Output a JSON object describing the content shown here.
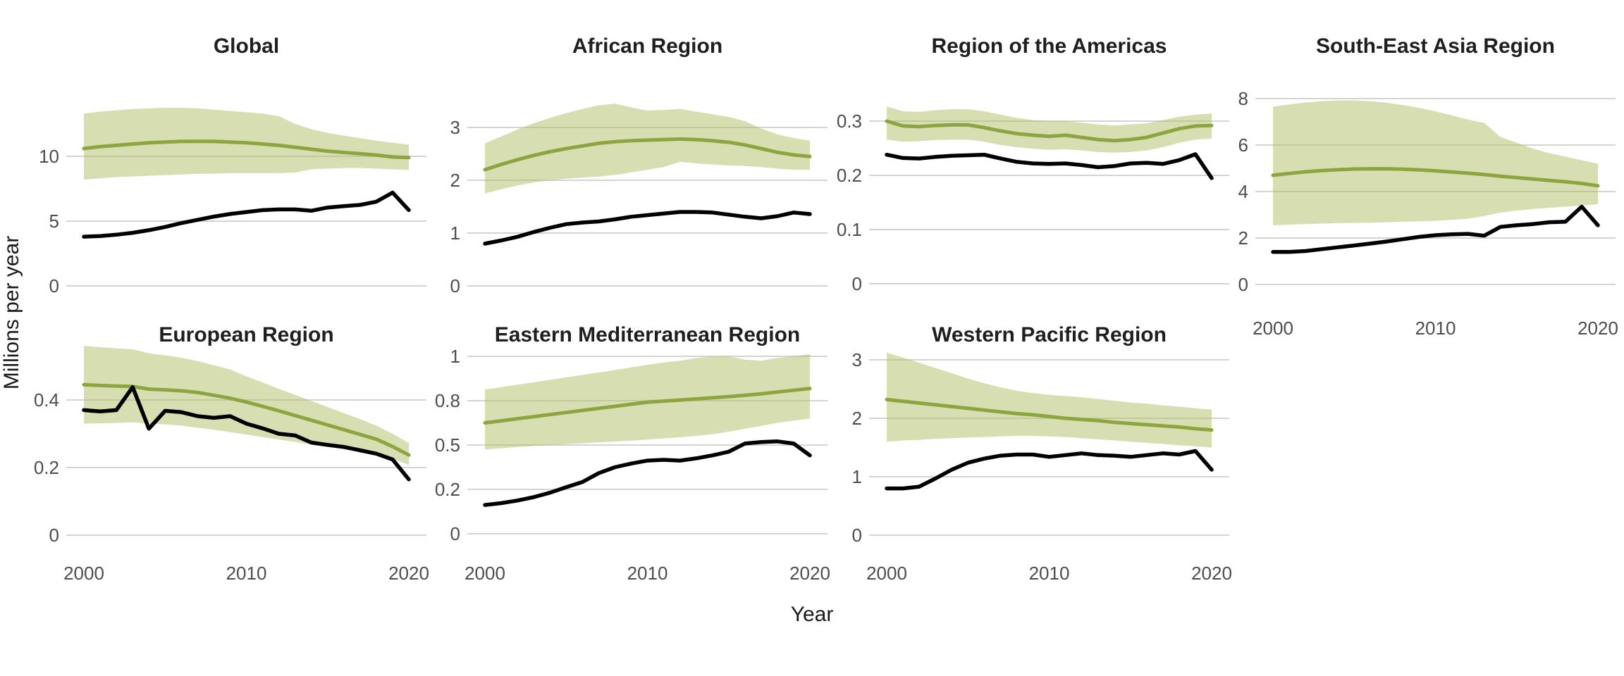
{
  "figure": {
    "y_axis_label": "Millions per year",
    "x_axis_label": "Year",
    "background": "#ffffff",
    "colors": {
      "green_line": "#8ca53f",
      "band_fill_composited": "#d6deb2",
      "black_line": "#000000",
      "gridline": "#d4d4d4",
      "title_text": "#1f1f1f",
      "tick_text": "#4d4d4d"
    }
  },
  "chart_data": {
    "type": "line",
    "layout": {
      "facet_rows": 2,
      "facet_columns": 4,
      "grid": true,
      "legend": false,
      "series_style": {
        "green_line": "mean line with shaded band",
        "black_line": "solid black line"
      }
    },
    "x_years": [
      2000,
      2001,
      2002,
      2003,
      2004,
      2005,
      2006,
      2007,
      2008,
      2009,
      2010,
      2011,
      2012,
      2013,
      2014,
      2015,
      2016,
      2017,
      2018,
      2019,
      2020
    ],
    "x_ticks": [
      2000,
      2010,
      2020
    ],
    "panels": [
      {
        "title": "Global",
        "y_ticks": [
          0,
          5,
          10
        ],
        "show_x_tick_labels": false,
        "series": {
          "green_line": [
            10.6,
            10.75,
            10.85,
            10.95,
            11.05,
            11.1,
            11.15,
            11.15,
            11.15,
            11.1,
            11.05,
            10.95,
            10.85,
            10.7,
            10.55,
            10.4,
            10.3,
            10.2,
            10.1,
            9.95,
            9.9
          ],
          "band_upper": [
            13.3,
            13.45,
            13.55,
            13.65,
            13.7,
            13.75,
            13.75,
            13.7,
            13.6,
            13.5,
            13.4,
            13.3,
            13.1,
            12.5,
            12.1,
            11.8,
            11.6,
            11.4,
            11.2,
            11.05,
            10.9
          ],
          "band_lower": [
            8.2,
            8.3,
            8.4,
            8.45,
            8.5,
            8.55,
            8.6,
            8.65,
            8.65,
            8.7,
            8.7,
            8.7,
            8.7,
            8.75,
            9.0,
            9.05,
            9.1,
            9.1,
            9.05,
            9.0,
            8.95
          ],
          "black_line": [
            3.8,
            3.85,
            3.95,
            4.1,
            4.3,
            4.55,
            4.85,
            5.1,
            5.35,
            5.55,
            5.7,
            5.85,
            5.9,
            5.9,
            5.8,
            6.05,
            6.15,
            6.25,
            6.5,
            7.2,
            5.85
          ]
        }
      },
      {
        "title": "African Region",
        "y_ticks": [
          0,
          1,
          2,
          3
        ],
        "show_x_tick_labels": false,
        "series": {
          "green_line": [
            2.2,
            2.3,
            2.39,
            2.47,
            2.54,
            2.6,
            2.65,
            2.7,
            2.73,
            2.75,
            2.76,
            2.77,
            2.78,
            2.77,
            2.75,
            2.72,
            2.67,
            2.6,
            2.53,
            2.48,
            2.45
          ],
          "band_upper": [
            2.7,
            2.83,
            2.96,
            3.08,
            3.18,
            3.27,
            3.35,
            3.42,
            3.45,
            3.38,
            3.32,
            3.33,
            3.35,
            3.3,
            3.25,
            3.2,
            3.12,
            2.98,
            2.87,
            2.8,
            2.75
          ],
          "band_lower": [
            1.75,
            1.83,
            1.9,
            1.96,
            2.0,
            2.03,
            2.05,
            2.07,
            2.1,
            2.15,
            2.2,
            2.25,
            2.35,
            2.32,
            2.3,
            2.28,
            2.27,
            2.25,
            2.22,
            2.2,
            2.2
          ],
          "black_line": [
            0.8,
            0.86,
            0.93,
            1.02,
            1.1,
            1.17,
            1.2,
            1.22,
            1.26,
            1.31,
            1.34,
            1.37,
            1.4,
            1.4,
            1.39,
            1.35,
            1.31,
            1.28,
            1.32,
            1.39,
            1.36
          ]
        }
      },
      {
        "title": "Region of the Americas",
        "y_ticks": [
          0,
          0.1,
          0.2,
          0.3
        ],
        "show_x_tick_labels": false,
        "series": {
          "green_line": [
            0.3,
            0.291,
            0.29,
            0.292,
            0.293,
            0.293,
            0.288,
            0.282,
            0.277,
            0.274,
            0.272,
            0.274,
            0.27,
            0.266,
            0.264,
            0.266,
            0.27,
            0.278,
            0.286,
            0.291,
            0.292
          ],
          "band_upper": [
            0.327,
            0.318,
            0.317,
            0.32,
            0.322,
            0.322,
            0.318,
            0.312,
            0.306,
            0.302,
            0.3,
            0.3,
            0.297,
            0.294,
            0.292,
            0.294,
            0.296,
            0.302,
            0.308,
            0.312,
            0.314
          ],
          "band_lower": [
            0.266,
            0.262,
            0.263,
            0.265,
            0.266,
            0.266,
            0.262,
            0.256,
            0.252,
            0.249,
            0.247,
            0.248,
            0.246,
            0.243,
            0.242,
            0.243,
            0.246,
            0.252,
            0.26,
            0.266,
            0.268
          ],
          "black_line": [
            0.238,
            0.232,
            0.231,
            0.234,
            0.236,
            0.237,
            0.238,
            0.231,
            0.225,
            0.222,
            0.221,
            0.222,
            0.219,
            0.215,
            0.217,
            0.222,
            0.223,
            0.221,
            0.228,
            0.239,
            0.195
          ]
        }
      },
      {
        "title": "South-East Asia Region",
        "y_ticks": [
          0,
          2,
          4,
          6,
          8
        ],
        "show_x_tick_labels": true,
        "series": {
          "green_line": [
            4.7,
            4.78,
            4.85,
            4.9,
            4.94,
            4.97,
            4.98,
            4.98,
            4.96,
            4.93,
            4.89,
            4.84,
            4.79,
            4.73,
            4.66,
            4.6,
            4.54,
            4.48,
            4.42,
            4.35,
            4.25
          ],
          "band_upper": [
            7.65,
            7.75,
            7.83,
            7.89,
            7.92,
            7.92,
            7.89,
            7.82,
            7.72,
            7.6,
            7.45,
            7.28,
            7.1,
            6.95,
            6.35,
            6.1,
            5.85,
            5.65,
            5.5,
            5.35,
            5.2
          ],
          "band_lower": [
            2.55,
            2.58,
            2.6,
            2.62,
            2.64,
            2.65,
            2.66,
            2.68,
            2.7,
            2.72,
            2.74,
            2.78,
            2.83,
            2.95,
            3.1,
            3.18,
            3.25,
            3.3,
            3.35,
            3.4,
            3.45
          ],
          "black_line": [
            1.4,
            1.4,
            1.44,
            1.52,
            1.6,
            1.68,
            1.76,
            1.85,
            1.95,
            2.05,
            2.12,
            2.16,
            2.18,
            2.1,
            2.48,
            2.55,
            2.6,
            2.68,
            2.7,
            3.35,
            2.55
          ]
        }
      },
      {
        "title": "European Region",
        "y_ticks": [
          0,
          0.2,
          0.4
        ],
        "show_x_tick_labels": true,
        "series": {
          "green_line": [
            0.445,
            0.443,
            0.441,
            0.44,
            0.432,
            0.43,
            0.427,
            0.422,
            0.414,
            0.405,
            0.394,
            0.381,
            0.368,
            0.354,
            0.34,
            0.326,
            0.312,
            0.298,
            0.284,
            0.262,
            0.237
          ],
          "band_upper": [
            0.56,
            0.556,
            0.553,
            0.55,
            0.538,
            0.532,
            0.525,
            0.515,
            0.503,
            0.49,
            0.47,
            0.452,
            0.433,
            0.415,
            0.397,
            0.379,
            0.361,
            0.343,
            0.324,
            0.3,
            0.272
          ],
          "band_lower": [
            0.33,
            0.331,
            0.332,
            0.334,
            0.33,
            0.328,
            0.324,
            0.318,
            0.312,
            0.305,
            0.298,
            0.29,
            0.283,
            0.276,
            0.268,
            0.261,
            0.254,
            0.246,
            0.238,
            0.226,
            0.208
          ],
          "black_line": [
            0.37,
            0.366,
            0.37,
            0.438,
            0.315,
            0.368,
            0.364,
            0.352,
            0.347,
            0.352,
            0.33,
            0.316,
            0.3,
            0.295,
            0.274,
            0.267,
            0.261,
            0.251,
            0.241,
            0.224,
            0.165
          ]
        }
      },
      {
        "title": "Eastern Mediterranean Region",
        "y_ticks": [
          0,
          0.2,
          0.5,
          0.8,
          1
        ],
        "y_ticks_equally_spaced": true,
        "show_x_tick_labels": true,
        "series": {
          "green_line": [
            0.65,
            0.664,
            0.678,
            0.692,
            0.706,
            0.72,
            0.734,
            0.748,
            0.762,
            0.776,
            0.79,
            0.797,
            0.803,
            0.808,
            0.813,
            0.818,
            0.824,
            0.831,
            0.839,
            0.847,
            0.855
          ],
          "band_upper": [
            0.85,
            0.861,
            0.872,
            0.883,
            0.894,
            0.905,
            0.916,
            0.927,
            0.938,
            0.95,
            0.962,
            0.972,
            0.98,
            0.992,
            1.0,
            1.0,
            0.985,
            0.98,
            0.993,
            1.0,
            1.01
          ],
          "band_lower": [
            0.47,
            0.478,
            0.486,
            0.494,
            0.5,
            0.506,
            0.512,
            0.518,
            0.524,
            0.53,
            0.537,
            0.545,
            0.553,
            0.562,
            0.574,
            0.59,
            0.61,
            0.63,
            0.65,
            0.665,
            0.68
          ],
          "black_line": [
            0.13,
            0.138,
            0.15,
            0.165,
            0.185,
            0.215,
            0.25,
            0.31,
            0.35,
            0.375,
            0.395,
            0.4,
            0.395,
            0.41,
            0.43,
            0.455,
            0.51,
            0.52,
            0.525,
            0.51,
            0.43
          ]
        }
      },
      {
        "title": "Western Pacific Region",
        "y_ticks": [
          0,
          1,
          2,
          3
        ],
        "show_x_tick_labels": true,
        "series": {
          "green_line": [
            2.32,
            2.29,
            2.26,
            2.23,
            2.2,
            2.17,
            2.14,
            2.11,
            2.08,
            2.06,
            2.03,
            2.0,
            1.98,
            1.96,
            1.93,
            1.91,
            1.89,
            1.87,
            1.85,
            1.82,
            1.8
          ],
          "band_upper": [
            3.12,
            3.04,
            2.95,
            2.86,
            2.77,
            2.68,
            2.6,
            2.53,
            2.47,
            2.43,
            2.4,
            2.38,
            2.36,
            2.33,
            2.3,
            2.27,
            2.25,
            2.22,
            2.2,
            2.17,
            2.15
          ],
          "band_lower": [
            1.6,
            1.62,
            1.63,
            1.65,
            1.66,
            1.67,
            1.68,
            1.69,
            1.7,
            1.7,
            1.69,
            1.68,
            1.66,
            1.64,
            1.62,
            1.6,
            1.58,
            1.56,
            1.54,
            1.52,
            1.5
          ],
          "black_line": [
            0.8,
            0.8,
            0.83,
            0.97,
            1.12,
            1.24,
            1.31,
            1.36,
            1.38,
            1.38,
            1.34,
            1.37,
            1.4,
            1.37,
            1.36,
            1.34,
            1.37,
            1.4,
            1.38,
            1.44,
            1.12
          ]
        }
      }
    ]
  }
}
